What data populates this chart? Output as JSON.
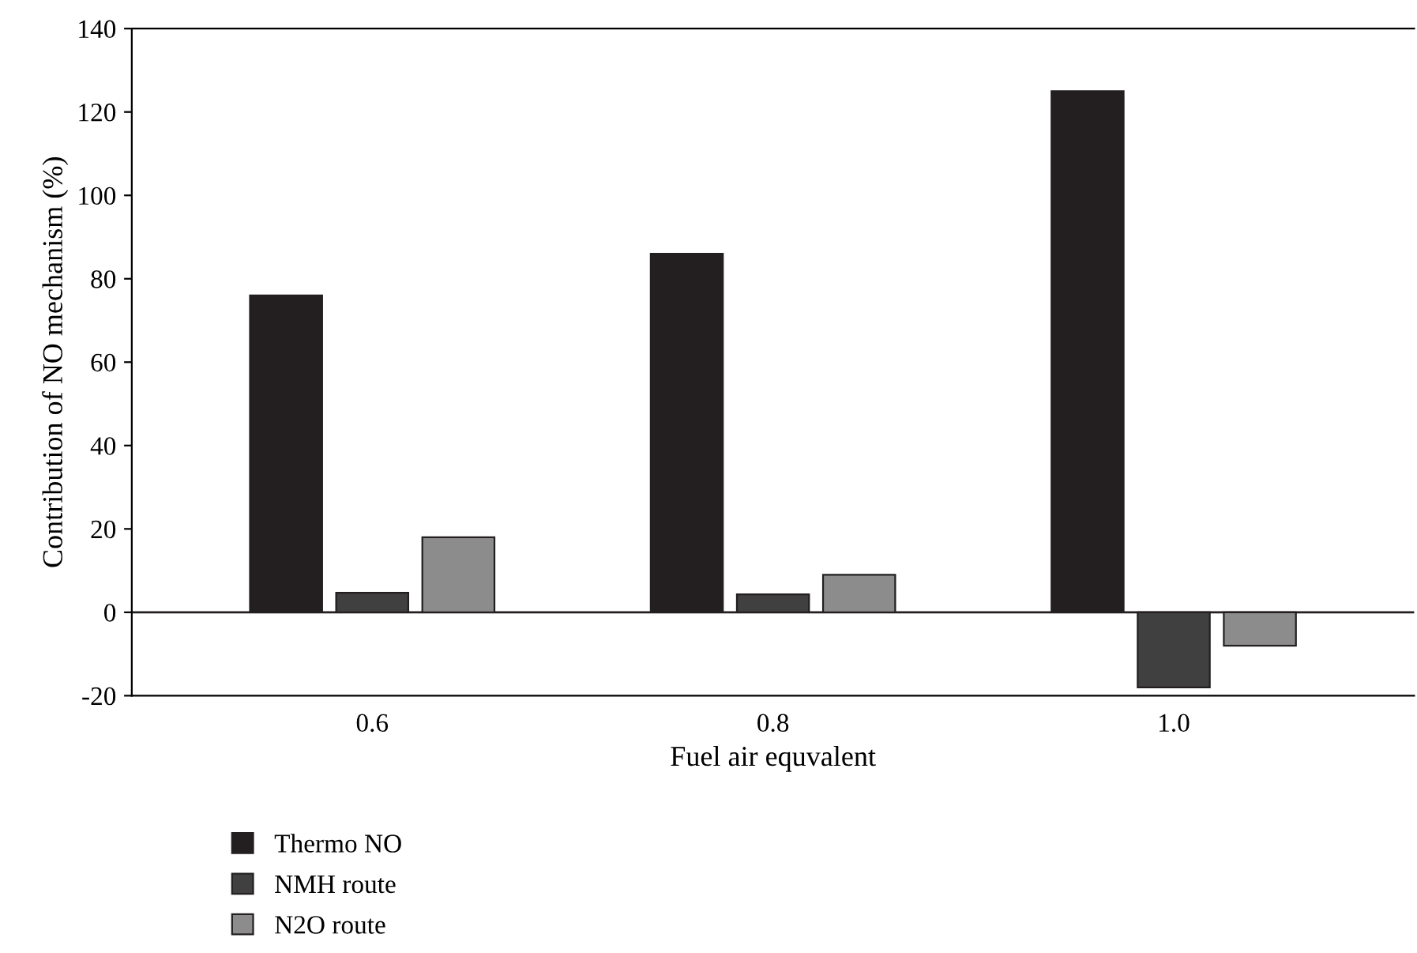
{
  "chart_data": {
    "type": "bar",
    "xlabel": "Fuel air equvalent",
    "ylabel": "Contribution of NO mechanism (%)",
    "categories": [
      "0.6",
      "0.8",
      "1.0"
    ],
    "series": [
      {
        "name": "Thermo NO",
        "color": "#231f20",
        "values": [
          76,
          86,
          125
        ]
      },
      {
        "name": "NMH route",
        "color": "#404040",
        "values": [
          4.7,
          4.3,
          -18
        ]
      },
      {
        "name": "N2O route",
        "color": "#8c8c8c",
        "values": [
          18,
          9,
          -8
        ]
      }
    ],
    "ylim": [
      -20,
      140
    ],
    "yticks": [
      -20,
      0,
      20,
      40,
      60,
      80,
      100,
      120,
      140
    ],
    "ref_lines": [
      {
        "axis": "y",
        "value": 0,
        "color": "#231f20"
      }
    ],
    "grid": false,
    "legend": "bottom left"
  }
}
